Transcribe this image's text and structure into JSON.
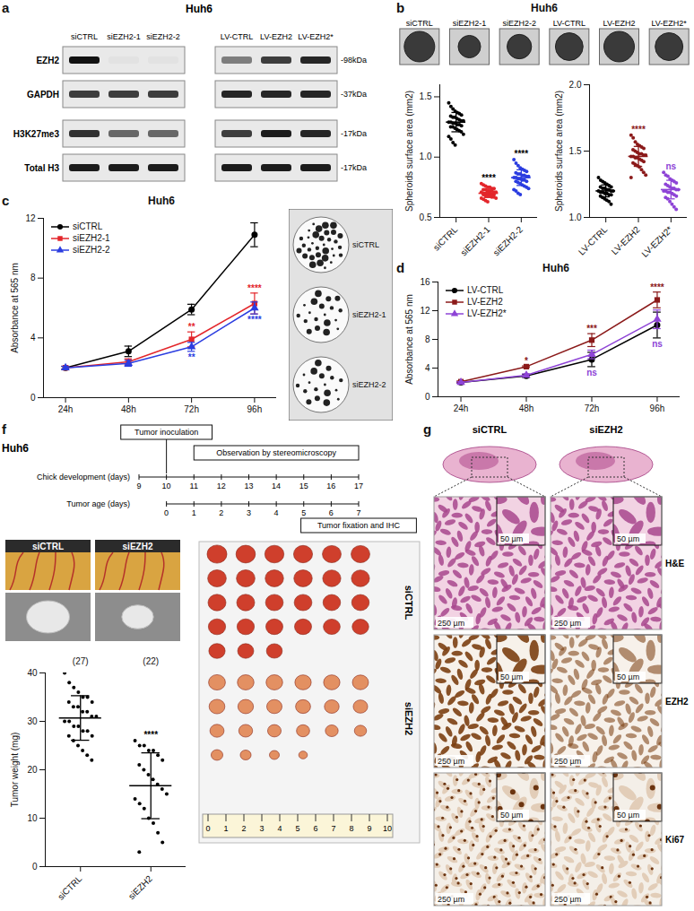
{
  "panels": {
    "a": {
      "letter": "a",
      "title": "Huh6",
      "lanes": [
        [
          "siCTRL",
          "siEZH2-1",
          "siEZH2-2"
        ],
        [
          "LV-CTRL",
          "LV-EZH2",
          "LV-EZH2*"
        ]
      ],
      "rows": [
        {
          "name": "EZH2",
          "size": "-98kDa",
          "intensity": [
            [
              1,
              0.03,
              0.03
            ],
            [
              0.5,
              0.8,
              0.9
            ]
          ]
        },
        {
          "name": "GAPDH",
          "size": "-37kDa",
          "intensity": [
            [
              0.8,
              0.8,
              0.8
            ],
            [
              0.9,
              0.9,
              0.9
            ]
          ]
        },
        {
          "name": "H3K27me3",
          "size": "-17kDa",
          "intensity": [
            [
              0.85,
              0.6,
              0.6
            ],
            [
              0.8,
              0.95,
              0.9
            ]
          ]
        },
        {
          "name": "Total H3",
          "size": "-17kDa",
          "intensity": [
            [
              0.95,
              0.95,
              0.95
            ],
            [
              0.95,
              0.95,
              0.95
            ]
          ]
        }
      ]
    },
    "b": {
      "letter": "b",
      "title": "Huh6"
    },
    "c": {
      "letter": "c",
      "title": "Huh6"
    },
    "d": {
      "letter": "d",
      "title": "Huh6"
    },
    "f": {
      "letter": "f",
      "title": "Huh6",
      "timeline": {
        "rows": [
          {
            "label": "Chick development (days)",
            "ticks": [
              9,
              10,
              11,
              12,
              13,
              14,
              15,
              16,
              17
            ]
          },
          {
            "label": "Tumor age (days)",
            "ticks": [
              0,
              1,
              2,
              3,
              4,
              5,
              6,
              7
            ]
          }
        ],
        "events": [
          {
            "text": "Tumor inoculation",
            "day": 10
          },
          {
            "text": "Observation by stereomicroscopy",
            "from": 11,
            "to": 17
          },
          {
            "text": "Tumor fixation and IHC",
            "day": 17
          }
        ]
      },
      "ruler": [
        0,
        1,
        2,
        3,
        4,
        5,
        6,
        7,
        8,
        9,
        10
      ]
    },
    "g": {
      "letter": "g",
      "columns": [
        "siCTRL",
        "siEZH2"
      ],
      "rows": [
        "H&E",
        "EZH2",
        "Ki67"
      ],
      "scale_bar": "250 µm",
      "inset_scale_bar": "50 µm"
    }
  },
  "chart_data": [
    {
      "type": "dotplot",
      "ylabel": "Spheroids surface area (mm2)",
      "categories": [
        "siCTRL",
        "siEZH2-1",
        "siEZH2-2"
      ],
      "colors": [
        "#000000",
        "#e3262b",
        "#2b3de0"
      ],
      "values": [
        [
          1.45,
          1.42,
          1.4,
          1.38,
          1.37,
          1.36,
          1.35,
          1.34,
          1.33,
          1.33,
          1.32,
          1.31,
          1.3,
          1.3,
          1.29,
          1.29,
          1.28,
          1.28,
          1.27,
          1.27,
          1.26,
          1.25,
          1.25,
          1.24,
          1.23,
          1.22,
          1.21,
          1.19,
          1.17,
          1.15,
          1.12,
          1.1
        ],
        [
          0.78,
          0.77,
          0.76,
          0.75,
          0.75,
          0.74,
          0.74,
          0.73,
          0.73,
          0.72,
          0.72,
          0.72,
          0.71,
          0.71,
          0.71,
          0.7,
          0.7,
          0.7,
          0.7,
          0.69,
          0.69,
          0.69,
          0.68,
          0.68,
          0.68,
          0.67,
          0.67,
          0.66,
          0.66,
          0.65,
          0.64,
          0.63
        ],
        [
          0.98,
          0.95,
          0.93,
          0.91,
          0.9,
          0.89,
          0.88,
          0.87,
          0.86,
          0.86,
          0.85,
          0.85,
          0.84,
          0.84,
          0.83,
          0.83,
          0.82,
          0.82,
          0.81,
          0.81,
          0.8,
          0.8,
          0.79,
          0.78,
          0.77,
          0.76,
          0.75,
          0.74,
          0.73,
          0.72,
          0.7,
          0.69
        ]
      ],
      "mean": [
        1.29,
        0.7,
        0.83
      ],
      "sd": [
        0.08,
        0.035,
        0.065
      ],
      "ylim": [
        0.5,
        1.6
      ],
      "yticks": [
        0.5,
        {
          "value": 1,
          "label": "1.0"
        },
        1.5
      ],
      "annotations": [
        {
          "category": "siEZH2-1",
          "text": "****",
          "color": "#000000"
        },
        {
          "category": "siEZH2-2",
          "text": "****",
          "color": "#000000"
        }
      ]
    },
    {
      "type": "dotplot",
      "ylabel": "Spheroids surface area (mm2)",
      "categories": [
        "LV-CTRL",
        "LV-EZH2",
        "LV-EZH2*"
      ],
      "colors": [
        "#000000",
        "#8b1a1a",
        "#8e44d6"
      ],
      "values": [
        [
          1.3,
          1.28,
          1.27,
          1.26,
          1.25,
          1.24,
          1.23,
          1.23,
          1.22,
          1.22,
          1.21,
          1.21,
          1.2,
          1.2,
          1.2,
          1.19,
          1.19,
          1.18,
          1.18,
          1.17,
          1.17,
          1.16,
          1.15,
          1.14,
          1.13,
          1.12,
          1.1
        ],
        [
          1.62,
          1.6,
          1.57,
          1.55,
          1.54,
          1.53,
          1.52,
          1.51,
          1.5,
          1.49,
          1.48,
          1.48,
          1.47,
          1.47,
          1.46,
          1.46,
          1.45,
          1.45,
          1.44,
          1.43,
          1.42,
          1.41,
          1.4,
          1.39,
          1.38,
          1.36,
          1.34,
          1.32,
          1.3
        ],
        [
          1.34,
          1.32,
          1.31,
          1.29,
          1.28,
          1.27,
          1.26,
          1.25,
          1.24,
          1.23,
          1.22,
          1.22,
          1.21,
          1.21,
          1.2,
          1.2,
          1.19,
          1.19,
          1.18,
          1.17,
          1.16,
          1.15,
          1.14,
          1.12,
          1.1,
          1.08,
          1.06
        ]
      ],
      "mean": [
        1.2,
        1.46,
        1.21
      ],
      "sd": [
        0.045,
        0.075,
        0.07
      ],
      "ylim": [
        1,
        2
      ],
      "yticks": [
        {
          "value": 1,
          "label": "1.0"
        },
        1.5,
        {
          "value": 2,
          "label": "2.0"
        }
      ],
      "annotations": [
        {
          "category": "LV-EZH2",
          "text": "****",
          "color": "#8b1a1a"
        },
        {
          "category": "LV-EZH2*",
          "text": "ns",
          "color": "#8e44d6"
        }
      ]
    },
    {
      "type": "line",
      "ylabel": "Absorbance at 565 nm",
      "categories": [
        "24h",
        "48h",
        "72h",
        "96h"
      ],
      "ylim": [
        0,
        12
      ],
      "yticks": [
        0,
        4,
        8,
        12
      ],
      "legend": "top-left",
      "series": [
        {
          "name": "siCTRL",
          "color": "#000000",
          "marker": "circle",
          "values": [
            2.0,
            3.1,
            5.9,
            10.9
          ],
          "error": [
            0.1,
            0.35,
            0.35,
            0.8
          ]
        },
        {
          "name": "siEZH2-1",
          "color": "#e3262b",
          "marker": "square",
          "values": [
            2.0,
            2.4,
            3.9,
            6.3
          ],
          "error": [
            0.1,
            0.2,
            0.5,
            0.7
          ]
        },
        {
          "name": "siEZH2-2",
          "color": "#2b3de0",
          "marker": "triangle",
          "values": [
            2.0,
            2.3,
            3.4,
            6.0
          ],
          "error": [
            0.1,
            0.2,
            0.3,
            0.4
          ]
        }
      ],
      "annotations": [
        {
          "series": "siEZH2-1",
          "category": "72h",
          "text": "**"
        },
        {
          "series": "siEZH2-2",
          "category": "72h",
          "text": "**"
        },
        {
          "series": "siEZH2-1",
          "category": "96h",
          "text": "****"
        },
        {
          "series": "siEZH2-2",
          "category": "96h",
          "text": "****"
        }
      ]
    },
    {
      "type": "line",
      "ylabel": "Absorbance at 565 nm",
      "categories": [
        "24h",
        "48h",
        "72h",
        "96h"
      ],
      "ylim": [
        0,
        16
      ],
      "yticks": [
        0,
        4,
        8,
        12,
        16
      ],
      "legend": "top-left",
      "series": [
        {
          "name": "LV-CTRL",
          "color": "#000000",
          "marker": "circle",
          "values": [
            2.0,
            2.9,
            5.2,
            10.0
          ],
          "error": [
            0.1,
            0.2,
            1.0,
            1.8
          ]
        },
        {
          "name": "LV-EZH2",
          "color": "#8b1a1a",
          "marker": "square",
          "values": [
            2.1,
            4.2,
            7.9,
            13.5
          ],
          "error": [
            0.1,
            0.1,
            0.9,
            1.1
          ]
        },
        {
          "name": "LV-EZH2*",
          "color": "#8e44d6",
          "marker": "triangle",
          "values": [
            2.0,
            3.0,
            5.9,
            10.8
          ],
          "error": [
            0.1,
            0.2,
            0.6,
            1.3
          ]
        }
      ],
      "annotations": [
        {
          "series": "LV-EZH2",
          "category": "48h",
          "text": "*"
        },
        {
          "series": "LV-EZH2",
          "category": "72h",
          "text": "***"
        },
        {
          "series": "LV-EZH2*",
          "category": "72h",
          "text": "ns"
        },
        {
          "series": "LV-EZH2",
          "category": "96h",
          "text": "****"
        },
        {
          "series": "LV-EZH2*",
          "category": "96h",
          "text": "ns"
        }
      ]
    },
    {
      "type": "dotplot",
      "ylabel": "Tumor weight (mg)",
      "categories": [
        "siCTRL",
        "siEZH2"
      ],
      "colors": [
        "#000000",
        "#000000"
      ],
      "values": [
        [
          40,
          38,
          37,
          36,
          35,
          35,
          34,
          34,
          33,
          33,
          32,
          32,
          31,
          31,
          30,
          30,
          29,
          29,
          28,
          28,
          27,
          27,
          26,
          25,
          24,
          23,
          22
        ],
        [
          26,
          25,
          25,
          24,
          24,
          23,
          22,
          21,
          20,
          19,
          18,
          17,
          16,
          15,
          14,
          13,
          12,
          10,
          9,
          7,
          5,
          3
        ]
      ],
      "mean": [
        30.7,
        16.7
      ],
      "sd": [
        4.6,
        6.8
      ],
      "count_labels": [
        "(27)",
        "(22)"
      ],
      "ylim": [
        0,
        40
      ],
      "yticks": [
        0,
        10,
        20,
        30,
        40
      ],
      "annotations": [
        {
          "category": "siEZH2",
          "text": "****",
          "color": "#000000"
        }
      ]
    }
  ]
}
